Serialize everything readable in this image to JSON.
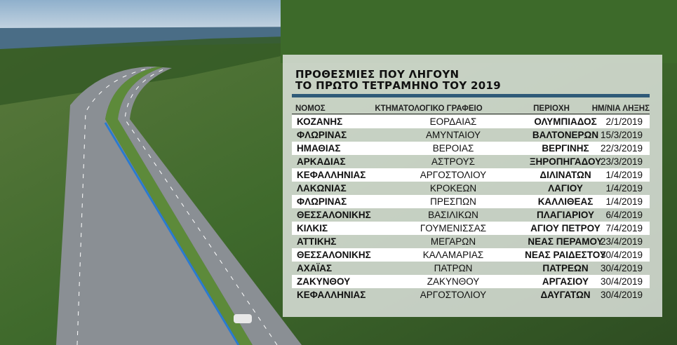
{
  "title_line1": "ΠΡΟΘΕΣΜΙΕΣ ΠΟΥ ΛΗΓΟΥΝ",
  "title_line2": "ΤΟ ΠΡΩΤΟ ΤΕΤΡΑΜΗΝΟ ΤΟΥ 2019",
  "accent_color": "#2f5a78",
  "headers": [
    "ΝΟΜΟΣ",
    "ΚΤΗΜΑΤΟΛΟΓΙΚΟ ΓΡΑΦΕΙΟ",
    "ΠΕΡΙΟΧΗ",
    "ΗΜ/ΝΙΑ ΛΗΞΗΣ"
  ],
  "rows": [
    [
      "ΚΟΖΑΝΗΣ",
      "ΕΟΡΔΑΙΑΣ",
      "ΟΛΥΜΠΙΑΔΟΣ",
      "2/1/2019"
    ],
    [
      "ΦΛΩΡΙΝΑΣ",
      "ΑΜΥΝΤΑΙΟΥ",
      "ΒΑΛΤΟΝΕΡΩΝ",
      "15/3/2019"
    ],
    [
      "ΗΜΑΘΙΑΣ",
      "ΒΕΡΟΙΑΣ",
      "ΒΕΡΓΙΝΗΣ",
      "22/3/2019"
    ],
    [
      "ΑΡΚΑΔΙΑΣ",
      "ΑΣΤΡΟΥΣ",
      "ΞΗΡΟΠΗΓΑΔΟΥ",
      "23/3/2019"
    ],
    [
      "ΚΕΦΑΛΛΗΝΙΑΣ",
      "ΑΡΓΟΣΤΟΛΙΟΥ",
      "ΔΙΛΙΝΑΤΩΝ",
      "1/4/2019"
    ],
    [
      "ΛΑΚΩΝΙΑΣ",
      "ΚΡΟΚΕΩΝ",
      "ΛΑΓΙΟΥ",
      "1/4/2019"
    ],
    [
      "ΦΛΩΡΙΝΑΣ",
      "ΠΡΕΣΠΩΝ",
      "ΚΑΛΛΙΘΕΑΣ",
      "1/4/2019"
    ],
    [
      "ΘΕΣΣΑΛΟΝΙΚΗΣ",
      "ΒΑΣΙΛΙΚΩΝ",
      "ΠΛΑΓΙΑΡΙΟΥ",
      "6/4/2019"
    ],
    [
      "ΚΙΛΚΙΣ",
      "ΓΟΥΜΕΝΙΣΣΑΣ",
      "ΑΓΙΟΥ ΠΕΤΡΟΥ",
      "7/4/2019"
    ],
    [
      "ΑΤΤΙΚΗΣ",
      "ΜΕΓΑΡΩΝ",
      "ΝΕΑΣ ΠΕΡΑΜΟΥ",
      "23/4/2019"
    ],
    [
      "ΘΕΣΣΑΛΟΝΙΚΗΣ",
      "ΚΑΛΑΜΑΡΙΑΣ",
      "ΝΕΑΣ ΡΑΙΔΕΣΤΟΥ",
      "30/4/2019"
    ],
    [
      "ΑΧΑΪΑΣ",
      "ΠΑΤΡΩΝ",
      "ΠΑΤΡΕΩΝ",
      "30/4/2019"
    ],
    [
      "ΖΑΚΥΝΘΟΥ",
      "ΖΑΚΥΝΘΟΥ",
      "ΑΡΓΑΣΙΟΥ",
      "30/4/2019"
    ],
    [
      "ΚΕΦΑΛΛΗΝΙΑΣ",
      "ΑΡΓΟΣΤΟΛΙΟΥ",
      "ΔΑΥΓΑΤΩΝ",
      "30/4/2019"
    ]
  ]
}
